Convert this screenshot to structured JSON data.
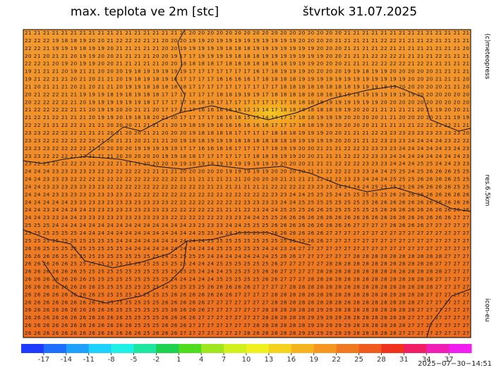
{
  "header": {
    "title": "max. teplota ve 2m [stc]",
    "date": "štvrtok 31.07.2025"
  },
  "side_labels": {
    "copyright": "(c)meteopress",
    "resolution": "res.6.5km",
    "model": "icon-eu"
  },
  "timestamp": "2025−07−30−14:51",
  "grid": {
    "rows": [
      "21 21 21 21 21 21 21 21 21 21 21 21 21 21 21 21 21 21 20 20 20 20 20 20 20 20 20 20 20 20 20 20 20 20 20 21 21 21 21 21 21 21 21 21 21 21 21 21 21",
      "22 22 22 19 18 18 19 20 20 21 22 22 22 21 21 20 20 20 19 19 20 19 19 19 19 19 19 19 19 19 20 20 20 20 21 21 21 21 21 22 22 21 21 21 22 21 21 21 21",
      "22 22 21 19 19 19 18 19 19 20 21 21 21 21 21 20 20 19 19 19 19 19 18 18 18 19 19 19 19 19 19 19 20 20 20 21 21 21 21 22 21 21 21 21 21 21 21 21 20",
      "20 21 20 21 21 20 19 19 20 20 21 21 21 21 20 20 19 17 17 19 19 19 19 18 18 18 19 19 19 19 19 19 19 20 20 21 21 21 22 22 22 21 21 21 21 22 21 21 21",
      "22 22 21 20 19 20 19 19 20 20 21 21 21 21 21 20 20 18 18 18 18 17 18 18 18 18 18 18 18 19 19 19 20 20 20 21 21 21 22 22 22 22 21 22 21 21 21 21 21",
      "19 21 21 21 20 19 21 21 20 20 20 19 18 19 19 19 19 19 17 17 17 17 17 17 17 16 17 18 19 19 19 20 20 20 20 19 19 18 19 19 20 20 20 20 20 21 21 21 21",
      "19 21 22 21 21 20 21 20 21 21 20 19 18 19 18 19 18 17 17 17 17 16 16 16 16 17 18 18 18 18 19 19 19 19 19 19 19 19 19 19 19 19 20 20 20 21 21 21 20",
      "21 20 21 21 21 20 21 20 21 21 20 19 19 18 18 18 18 18 17 17 17 17 17 17 17 17 17 17 18 18 18 18 18 18 18 18 19 19 19 19 19 20 20 20 20 20 21 21 20",
      "20 21 22 22 21 21 19 19 19 18 19 18 19 18 18 17 17 17 17 17 17 18 18 19 19 19 17 18 18 18 18 18 18 18 19 19 19 19 19 19 19 19 19 20 20 20 20 20 20",
      "20 22 22 22 22 21 20 19 19 19 19 19 19 18 17 17 17 17 18 18 18 17 17 17 17 17 17 17 17 18 18 18 18 19 19 19 19 19 19 20 20 20 20 20 20 20 20 20 20",
      "21 22 22 22 22 21 21 20 19 19 20 20 21 21 20 17 17 17 17 16 16 16 16 16 12 13 14 17 18 18 18 18 18 18 19 19 20 20 21 21 21 21 21 20 21 19 20 20 21",
      "21 22 21 22 21 21 21 20 19 19 20 19 18 18 20 21 20 17 17 17 17 16 16 16 15 15 14 14 17 17 18 18 19 19 19 20 20 20 20 21 21 20 20 20 20 21 21 19 19",
      "22 22 21 21 22 22 21 21 21 20 20 20 21 21 21 21 20 19 18 19 19 18 16 16 16 16 16 17 17 17 18 18 19 19 20 20 20 20 21 21 21 21 21 22 22 22 22 21 21",
      "23 23 22 22 22 22 21 21 21 20 21 20 20 21 21 20 20 20 19 18 18 18 18 17 17 17 17 18 18 18 19 19 19 20 20 21 21 21 22 23 23 23 23 23 23 23 23 23 20",
      "23 23 22 22 22 22 22 20 21 20 21 21 20 21 21 21 20 19 18 18 19 19 19 18 18 18 18 18 18 18 19 19 19 19 20 20 21 21 22 23 23 23 24 24 24 24 23 22 22",
      "23 23 23 22 22 22 22 21 20 20 20 20 19 19 19 19 19 17 17 16 16 16 16 17 17 17 17 18 19 19 20 20 21 21 21 22 22 22 23 23 23 24 24 24 24 24 23 24 23",
      "23 23 22 22 22 22 22 21 21 21 20 20 20 20 20 19 19 18 18 17 17 17 17 17 17 18 18 19 19 19 20 20 21 21 21 22 22 22 23 23 24 24 24 24 24 24 24 24 23",
      "23 22 23 22 22 22 23 22 22 22 21 21 21 20 20 20 19 19 19 19 19 19 19 19 19 19 19 19 20 20 20 21 21 21 22 22 22 23 23 23 24 24 24 25 25 24 24 23 23",
      "24 24 24 23 23 23 23 23 22 22 22 22 22 22 21 21 21 20 20 20 20 20 19 19 19 19 19 20 20 20 20 21 21 22 22 22 23 23 24 24 25 25 24 25 26 26 26 25 25",
      "24 24 23 23 23 22 22 22 22 22 22 22 22 22 22 22 22 21 21 21 21 21 21 21 20 20 20 20 21 21 21 21 22 22 22 23 23 24 24 24 25 25 25 26 26 26 26 25 25",
      "24 24 23 23 23 23 23 23 23 22 22 22 22 22 22 22 22 22 22 22 21 21 21 21 21 21 21 22 22 22 22 23 23 23 24 24 24 24 25 25 25 25 26 26 26 26 26 25 25",
      "24 24 24 23 23 23 23 23 23 23 23 23 22 22 22 22 22 22 22 22 22 22 22 22 22 22 22 23 23 24 24 25 25 25 24 25 25 25 25 25 26 26 26 26 26 26 26 26 26",
      "24 24 24 24 24 23 23 23 23 23 23 23 23 23 23 23 22 22 22 22 22 22 22 22 23 23 23 23 24 24 25 25 25 25 25 25 25 25 26 26 26 26 26 26 26 26 26 26 26",
      "24 24 23 24 24 24 24 23 23 23 23 23 23 23 23 23 22 22 22 22 22 21 21 21 22 23 24 24 25 25 25 26 26 25 25 25 25 25 25 26 26 26 26 26 26 26 26 26 26",
      "24 24 23 23 24 24 23 23 23 23 23 23 23 23 23 23 22 22 22 22 22 22 23 23 24 24 25 25 26 26 26 26 26 26 26 26 26 26 26 26 26 26 26 26 26 26 26 27 27",
      "25 25 25 24 24 24 24 24 24 24 24 24 24 24 24 24 24 24 23 23 23 23 24 24 25 25 25 26 26 26 26 26 26 26 26 26 27 27 27 27 26 26 26 26 27 27 27 27 27",
      "25 25 25 25 25 25 24 24 24 24 24 24 24 24 24 24 24 24 24 25 25 24 24 25 25 25 25 26 26 26 26 26 26 27 27 27 27 27 27 27 27 27 27 27 27 27 27 27 27",
      "25 25 25 25 25 25 25 25 25 25 24 24 24 24 24 24 24 24 24 24 25 25 25 25 25 25 25 25 25 25 25 26 26 27 27 27 27 27 27 27 27 27 27 27 27 27 27 27 27",
      "26 26 25 25 25 25 25 25 25 25 25 24 24 24 24 24 24 24 24 24 24 25 25 25 25 25 24 24 23 24 27 27 27 27 27 27 27 27 27 27 27 27 27 27 27 27 27 27 27",
      "26 26 26 26 25 25 25 25 25 25 25 25 25 25 25 24 25 25 25 25 24 24 24 24 24 24 24 25 26 26 27 27 27 27 27 27 28 28 28 28 28 28 28 28 28 28 27 27 27",
      "26 26 26 26 26 25 25 25 25 25 25 25 25 25 25 25 25 25 24 24 24 25 25 25 25 25 25 26 27 27 27 27 27 28 28 28 28 28 28 28 28 28 28 28 28 27 27 27 27",
      "26 26 26 26 26 26 25 25 25 25 25 25 25 25 25 25 25 25 25 24 24 24 25 25 25 25 26 26 27 27 27 27 28 28 28 28 28 28 28 28 28 28 28 28 28 28 27 27 27",
      "26 26 26 26 26 26 26 25 25 25 25 25 25 25 25 25 24 24 24 24 24 25 25 25 25 25 26 26 27 27 27 28 28 28 28 28 28 28 28 28 28 28 28 28 28 27 27 27 27",
      "26 26 26 26 26 26 26 26 25 25 25 25 25 25 25 24 25 25 25 25 26 26 26 26 26 27 27 27 27 28 28 28 28 28 28 28 28 28 28 28 28 28 28 28 28 27 27 27 27",
      "26 26 26 26 26 26 26 26 25 25 25 25 25 25 25 25 26 26 26 26 26 26 26 27 27 27 27 28 28 28 28 28 28 28 28 28 28 28 28 28 28 28 28 28 27 27 27 27 27",
      "26 26 26 26 26 26 26 26 26 25 25 25 25 25 25 26 26 26 26 26 27 27 27 27 27 27 27 28 28 28 28 28 28 28 28 28 28 28 28 28 28 28 28 27 27 27 27 27 27",
      "26 26 26 26 26 26 26 26 26 26 25 25 25 25 25 25 26 26 26 26 27 27 27 27 27 27 28 28 28 28 28 28 29 29 28 28 28 28 28 28 28 28 28 27 27 27 27 27 27",
      "26 26 26 26 26 26 26 26 26 26 26 25 25 25 25 26 26 26 26 27 27 27 27 27 27 27 28 28 28 28 28 29 29 29 29 28 28 28 28 28 28 28 27 27 27 27 27 27 27",
      "26 26 26 26 26 26 26 26 26 26 26 26 25 25 25 26 26 26 27 27 27 27 27 27 27 28 28 28 28 28 28 29 29 29 29 29 28 28 28 28 28 28 27 27 27 27 27 27 27",
      "26 26 26 26 26 26 26 26 26 26 26 26 26 25 26 26 26 27 27 27 27 27 27 27 28 28 28 28 28 28 29 29 29 29 29 29 28 28 28 28 28 27 27 27 27 27 27 27 27"
    ]
  },
  "colorbar": {
    "lim": [
      -20,
      40
    ],
    "ticks": [
      -17,
      -14,
      -11,
      -8,
      -5,
      -2,
      1,
      4,
      7,
      10,
      13,
      16,
      19,
      22,
      25,
      28,
      31,
      34,
      37
    ],
    "colors": [
      "#1e3cff",
      "#1e6eff",
      "#1ea0ff",
      "#1ed2ff",
      "#1ef0e6",
      "#1ee6a0",
      "#1ed250",
      "#50dc1e",
      "#a0e61e",
      "#d2f01e",
      "#f0f01e",
      "#f5d21e",
      "#f5b41e",
      "#f5961e",
      "#f0781e",
      "#f05a1e",
      "#f0321e",
      "#f01e64",
      "#f01eb4",
      "#f01ef0"
    ]
  }
}
